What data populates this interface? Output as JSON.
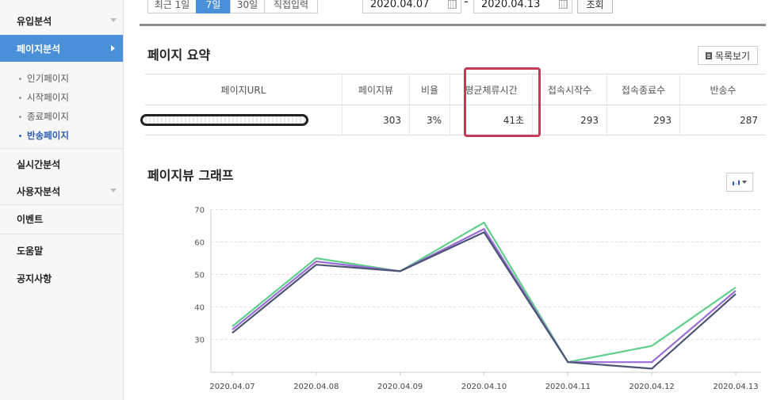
{
  "sidebar": {
    "items": [
      {
        "label": "유입분석"
      },
      {
        "label": "페이지분석"
      },
      {
        "label": "실시간분석"
      },
      {
        "label": "사용자분석"
      },
      {
        "label": "이벤트"
      },
      {
        "label": "도움말"
      },
      {
        "label": "공지사항"
      }
    ],
    "sub_items": [
      {
        "label": "인기페이지"
      },
      {
        "label": "시작페이지"
      },
      {
        "label": "종료페이지"
      },
      {
        "label": "반송페이지"
      }
    ]
  },
  "toolbar": {
    "periods": [
      "최근 1일",
      "7일",
      "30일",
      "직접입력"
    ],
    "start_date": "2020.04.07",
    "separator": "-",
    "end_date": "2020.04.13",
    "search_label": "조회"
  },
  "summary": {
    "title": "페이지 요약",
    "list_button": "목록보기",
    "headers": [
      "페이지URL",
      "페이지뷰",
      "비율",
      "평균체류시간",
      "접속시작수",
      "접속종료수",
      "반송수"
    ],
    "row": {
      "pageviews": "303",
      "ratio": "3%",
      "avg_time": "41초",
      "starts": "293",
      "ends": "293",
      "bounces": "287"
    }
  },
  "graph": {
    "title": "페이지뷰 그래프",
    "icon": "bar-chart-icon"
  },
  "chart_data": {
    "type": "line",
    "title": "",
    "x": [
      "2020.04.07",
      "2020.04.08",
      "2020.04.09",
      "2020.04.10",
      "2020.04.11",
      "2020.04.12",
      "2020.04.13"
    ],
    "yticks": [
      "30",
      "40",
      "50",
      "60",
      "70"
    ],
    "ylim": [
      20,
      70
    ],
    "grid": true,
    "series": [
      {
        "color": "#5fcf8a",
        "values": [
          34,
          55,
          51,
          66,
          23,
          28,
          46
        ]
      },
      {
        "color": "#9a6cd8",
        "values": [
          33,
          54,
          51,
          64,
          23,
          23,
          45
        ]
      },
      {
        "color": "#4c5574",
        "values": [
          32,
          53,
          51,
          63,
          23,
          21,
          44
        ]
      }
    ]
  }
}
